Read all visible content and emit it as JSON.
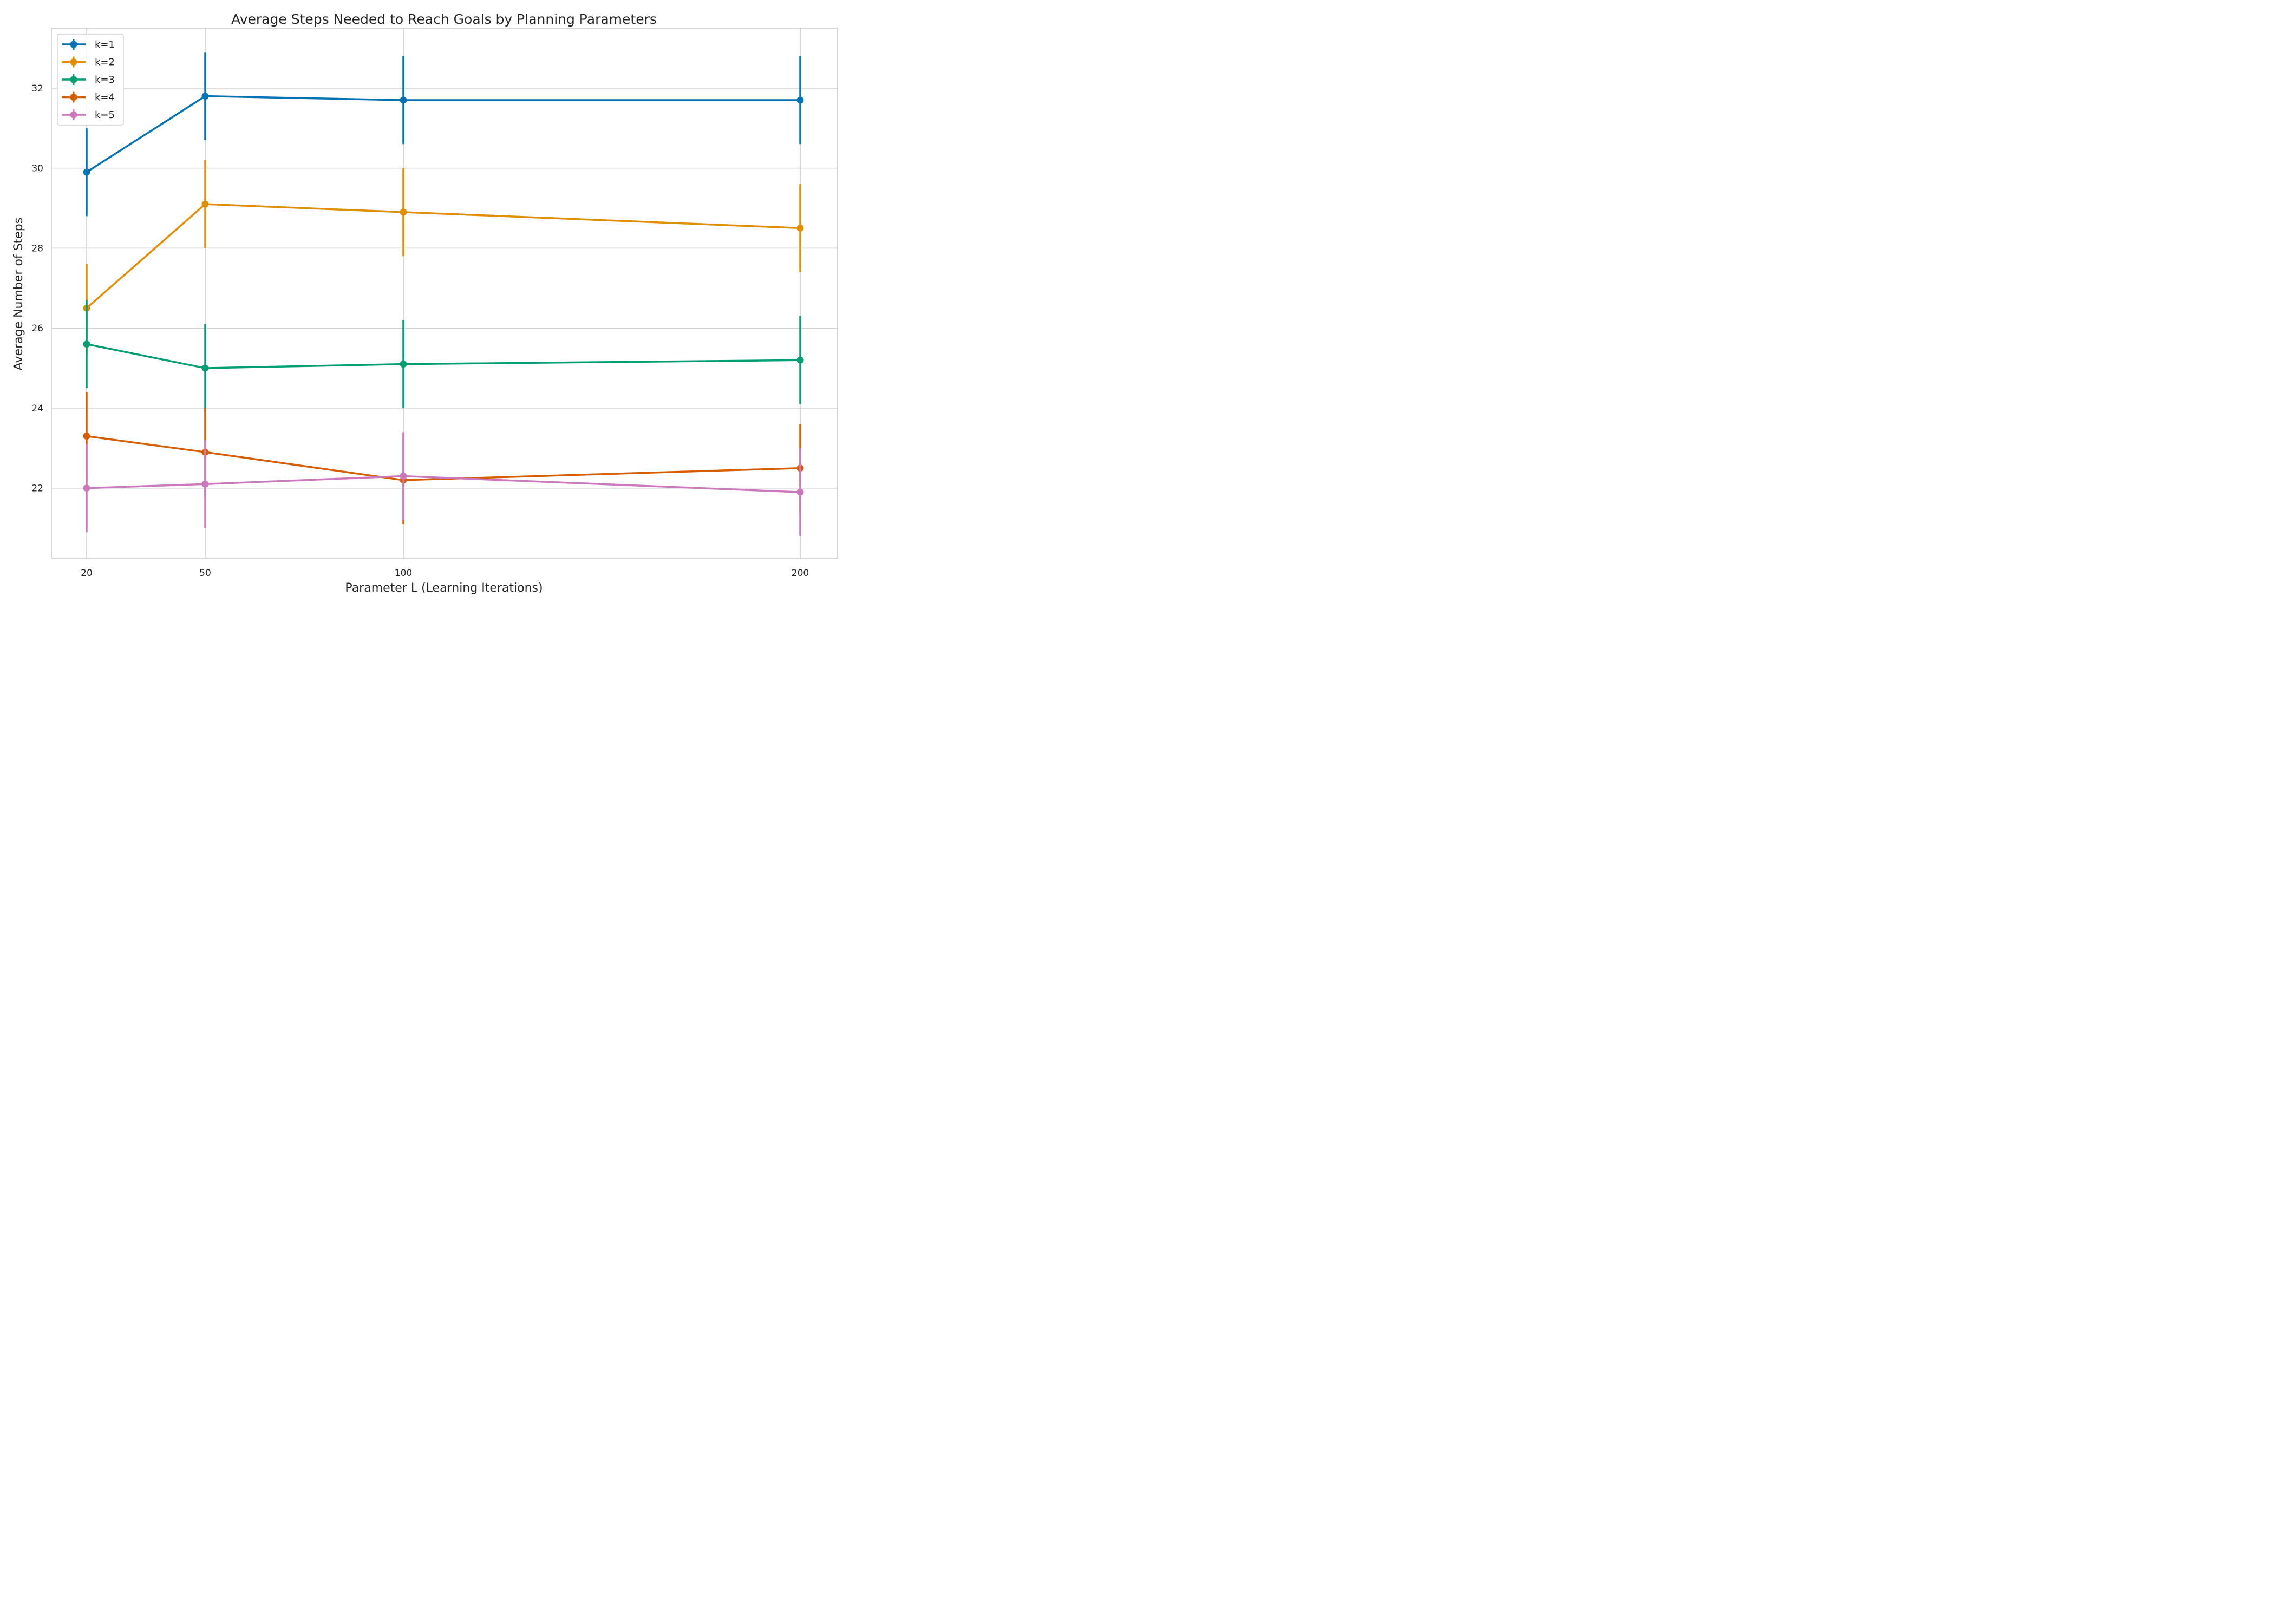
{
  "chart_data": {
    "type": "line",
    "title": "Average Steps Needed to Reach Goals by Planning Parameters",
    "xlabel": "Parameter L (Learning Iterations)",
    "ylabel": "Average Number of Steps",
    "x": [
      20,
      50,
      100,
      200
    ],
    "x_ticks": [
      "20",
      "50",
      "100",
      "200"
    ],
    "y_ticks": [
      "22",
      "24",
      "26",
      "28",
      "30",
      "32"
    ],
    "ylim": [
      20.25,
      33.5
    ],
    "grid": true,
    "legend_position": "top-left",
    "error_bars": true,
    "series": [
      {
        "name": "k=1",
        "color": "#0173b2",
        "values": [
          29.9,
          31.8,
          31.7,
          31.7
        ],
        "errors": [
          1.1,
          1.1,
          1.1,
          1.1
        ]
      },
      {
        "name": "k=2",
        "color": "#de8f05",
        "values": [
          26.5,
          29.1,
          28.9,
          28.5
        ],
        "errors": [
          1.1,
          1.1,
          1.1,
          1.1
        ]
      },
      {
        "name": "k=3",
        "color": "#029e73",
        "values": [
          25.6,
          25.0,
          25.1,
          25.2
        ],
        "errors": [
          1.1,
          1.1,
          1.1,
          1.1
        ]
      },
      {
        "name": "k=4",
        "color": "#d55e00",
        "values": [
          23.3,
          22.9,
          22.2,
          22.5
        ],
        "errors": [
          1.1,
          1.1,
          1.1,
          1.1
        ]
      },
      {
        "name": "k=5",
        "color": "#cc78bc",
        "values": [
          22.0,
          22.1,
          22.3,
          21.9
        ],
        "errors": [
          1.1,
          1.1,
          1.1,
          1.1
        ]
      }
    ]
  }
}
